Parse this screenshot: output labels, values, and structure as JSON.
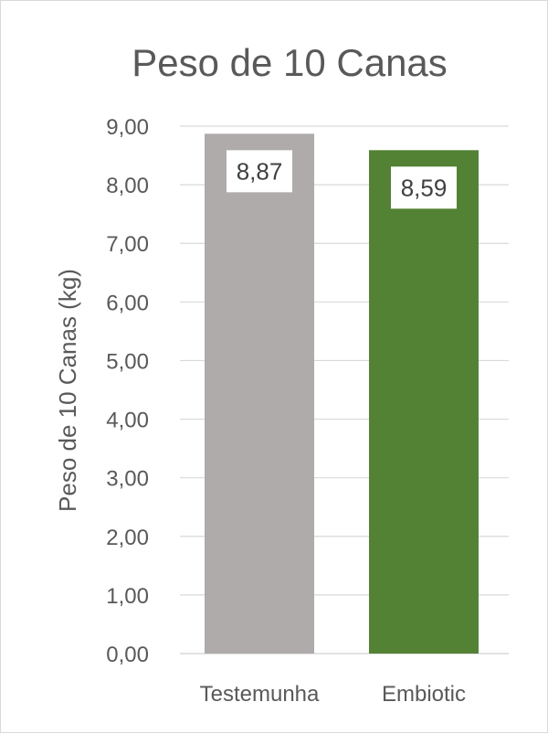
{
  "chart_data": {
    "type": "bar",
    "title": "Peso de 10 Canas",
    "xlabel": "",
    "ylabel": "Peso de 10 Canas (kg)",
    "categories": [
      "Testemunha",
      "Embiotic"
    ],
    "values": [
      8.87,
      8.59
    ],
    "value_labels": [
      "8,87",
      "8,59"
    ],
    "bar_colors": [
      "#afabab",
      "#548235"
    ],
    "ylim": [
      0,
      9
    ],
    "yticks": [
      0,
      1,
      2,
      3,
      4,
      5,
      6,
      7,
      8,
      9
    ],
    "ytick_labels": [
      "0,00",
      "1,00",
      "2,00",
      "3,00",
      "4,00",
      "5,00",
      "6,00",
      "7,00",
      "8,00",
      "9,00"
    ],
    "grid": true,
    "legend": "none"
  }
}
